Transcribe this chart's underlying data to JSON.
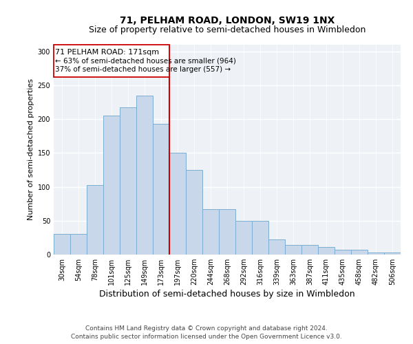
{
  "title1": "71, PELHAM ROAD, LONDON, SW19 1NX",
  "title2": "Size of property relative to semi-detached houses in Wimbledon",
  "xlabel": "Distribution of semi-detached houses by size in Wimbledon",
  "ylabel": "Number of semi-detached properties",
  "footnote1": "Contains HM Land Registry data © Crown copyright and database right 2024.",
  "footnote2": "Contains public sector information licensed under the Open Government Licence v3.0.",
  "categories": [
    "30sqm",
    "54sqm",
    "78sqm",
    "101sqm",
    "125sqm",
    "149sqm",
    "173sqm",
    "197sqm",
    "220sqm",
    "244sqm",
    "268sqm",
    "292sqm",
    "316sqm",
    "339sqm",
    "363sqm",
    "387sqm",
    "411sqm",
    "435sqm",
    "458sqm",
    "482sqm",
    "506sqm"
  ],
  "values": [
    30,
    30,
    103,
    205,
    218,
    235,
    193,
    150,
    125,
    67,
    67,
    50,
    50,
    22,
    14,
    14,
    11,
    7,
    7,
    3,
    3
  ],
  "bar_color": "#c8d8ea",
  "bar_edge_color": "#7aaed0",
  "highlight_index": 6,
  "highlight_line_color": "#cc0000",
  "highlight_label": "71 PELHAM ROAD: 171sqm",
  "annotation_line1": "← 63% of semi-detached houses are smaller (964)",
  "annotation_line2": "37% of semi-detached houses are larger (557) →",
  "box_edge_color": "#cc0000",
  "ylim": [
    0,
    310
  ],
  "yticks": [
    0,
    50,
    100,
    150,
    200,
    250,
    300
  ],
  "background_color": "#eef2f7",
  "grid_color": "#ffffff",
  "title1_fontsize": 10,
  "title2_fontsize": 9,
  "xlabel_fontsize": 9,
  "ylabel_fontsize": 8,
  "tick_fontsize": 7,
  "annot_fontsize": 8,
  "footnote_fontsize": 6.5
}
